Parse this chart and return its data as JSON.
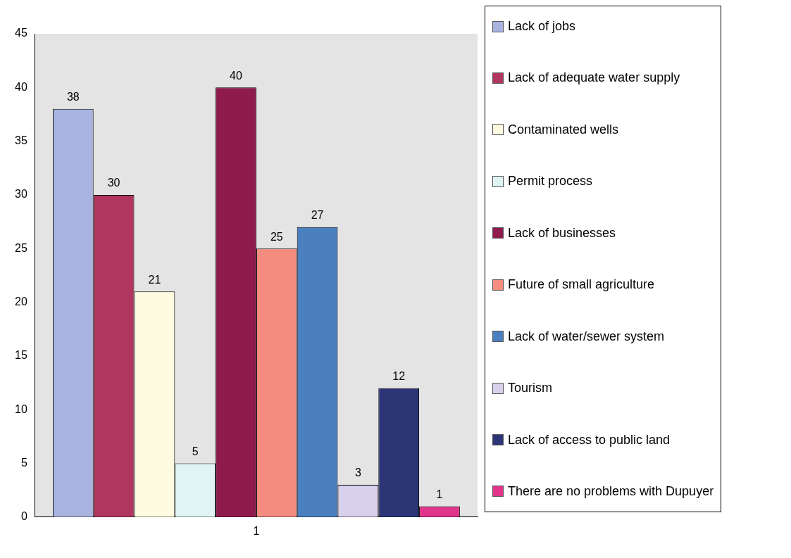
{
  "chart_data": {
    "type": "bar",
    "categories": [
      "1"
    ],
    "series": [
      {
        "name": "Lack of jobs",
        "color": "#a9b3e0",
        "values": [
          38
        ]
      },
      {
        "name": "Lack of adequate water supply",
        "color": "#b0365f",
        "values": [
          30
        ]
      },
      {
        "name": "Contaminated wells",
        "color": "#fffbe0",
        "values": [
          21
        ]
      },
      {
        "name": "Permit process",
        "color": "#e0f4f4",
        "values": [
          5
        ]
      },
      {
        "name": "Lack of businesses",
        "color": "#8e1a4e",
        "values": [
          40
        ]
      },
      {
        "name": "Future of small agriculture",
        "color": "#f48c80",
        "values": [
          25
        ]
      },
      {
        "name": "Lack of water/sewer system",
        "color": "#4a7fc0",
        "values": [
          27
        ]
      },
      {
        "name": "Tourism",
        "color": "#d8d0ec",
        "values": [
          3
        ]
      },
      {
        "name": "Lack of access to public land",
        "color": "#2c3575",
        "values": [
          12
        ]
      },
      {
        "name": "There are no problems with Dupuyer",
        "color": "#e0358a",
        "values": [
          1
        ]
      }
    ],
    "ylim": [
      0,
      45
    ],
    "yticks": [
      0,
      5,
      10,
      15,
      20,
      25,
      30,
      35,
      40,
      45
    ],
    "grid": false,
    "legend": "right",
    "data_labels": true
  }
}
